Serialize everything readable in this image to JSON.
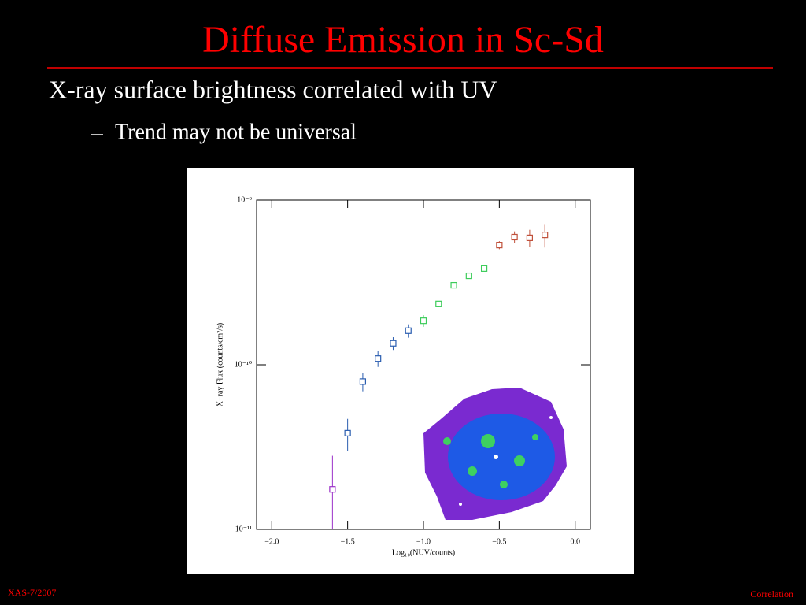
{
  "slide": {
    "title": "Diffuse Emission in Sc-Sd",
    "bullet": "X-ray surface brightness correlated with UV",
    "sub_bullet": "Trend may not be universal",
    "footer_left": "XAS-7/2007",
    "footer_right": "Correlation"
  },
  "chart_data": {
    "type": "scatter",
    "x_label": "Log₁₀(NUV/counts)",
    "y_label": "X−ray Flux (counts/cm²/s)",
    "log_y": true,
    "xlim": [
      -2.1,
      0.1
    ],
    "ylim": [
      1e-11,
      1e-09
    ],
    "xticks": [
      {
        "value": -2,
        "label": "−2.0"
      },
      {
        "value": -1.5,
        "label": "−1.5"
      },
      {
        "value": -1,
        "label": "−1.0"
      },
      {
        "value": -0.5,
        "label": "−0.5"
      },
      {
        "value": 0,
        "label": "0.0"
      }
    ],
    "yticks": [
      {
        "value": 1e-11,
        "label": "10⁻¹¹"
      },
      {
        "value": 1e-10,
        "label": "10⁻¹⁰"
      },
      {
        "value": 1e-09,
        "label": "10⁻⁹"
      }
    ],
    "series": [
      {
        "color": "#9b30c8",
        "x": [
          -1.6
        ],
        "values": [
          1.75e-11
        ],
        "errors": [
          1.05e-11
        ]
      },
      {
        "color": "#2a5db0",
        "x": [
          -1.5,
          -1.4,
          -1.3,
          -1.2,
          -1.1
        ],
        "values": [
          3.84e-11,
          7.9e-11,
          1.09e-10,
          1.35e-10,
          1.61e-10
        ],
        "errors": [
          8.5e-12,
          1e-11,
          1.2e-11,
          1.2e-11,
          1.5e-11
        ]
      },
      {
        "color": "#3ccc5a",
        "x": [
          -1.0,
          -0.9,
          -0.8,
          -0.7,
          -0.6
        ],
        "values": [
          1.85e-10,
          2.34e-10,
          3.04e-10,
          3.47e-10,
          3.84e-10
        ],
        "errors": [
          1.5e-11,
          1e-11,
          1e-11,
          1e-11,
          1.2e-11
        ]
      },
      {
        "color": "#c0503a",
        "x": [
          -0.5,
          -0.4,
          -0.3,
          -0.2
        ],
        "values": [
          5.33e-10,
          5.96e-10,
          5.9e-10,
          6.15e-10
        ],
        "errors": [
          3e-11,
          5e-11,
          7e-11,
          1e-10
        ]
      }
    ]
  }
}
